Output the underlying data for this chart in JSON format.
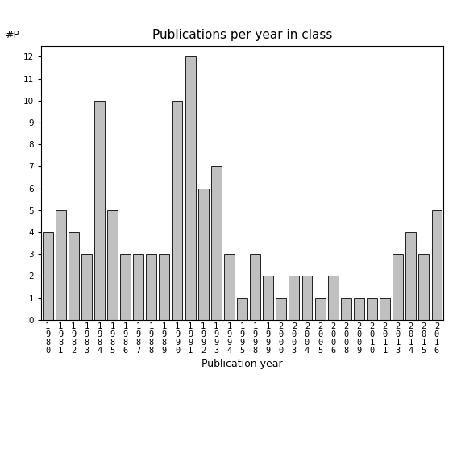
{
  "categories": [
    "1980",
    "1981",
    "1982",
    "1983",
    "1984",
    "1985",
    "1986",
    "1987",
    "1988",
    "1989",
    "1990",
    "1991",
    "1992",
    "1993",
    "1994",
    "1995",
    "1998",
    "1999",
    "2000",
    "2003",
    "2004",
    "2005",
    "2006",
    "2008",
    "2009",
    "2010",
    "2011",
    "2013",
    "2014",
    "2015",
    "2016"
  ],
  "values": [
    4,
    5,
    4,
    3,
    10,
    5,
    3,
    3,
    3,
    3,
    10,
    12,
    6,
    7,
    3,
    1,
    3,
    2,
    1,
    2,
    2,
    1,
    2,
    1,
    1,
    1,
    1,
    3,
    4,
    3,
    5
  ],
  "bar_color": "#c0c0c0",
  "bar_edgecolor": "#000000",
  "title": "Publications per year in class",
  "xlabel": "Publication year",
  "ylabel": "#P",
  "ylim": [
    0,
    12.5
  ],
  "yticks": [
    0,
    1,
    2,
    3,
    4,
    5,
    6,
    7,
    8,
    9,
    10,
    11,
    12
  ],
  "title_fontsize": 11,
  "label_fontsize": 9,
  "tick_fontsize": 7.5,
  "bar_width": 0.8
}
